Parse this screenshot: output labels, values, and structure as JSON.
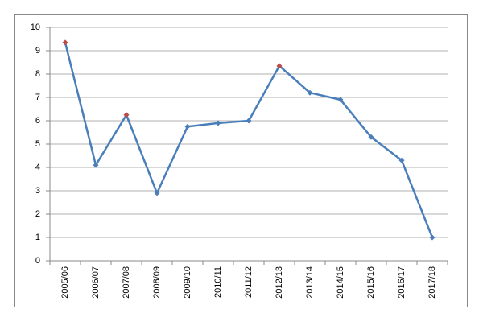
{
  "chart_data": {
    "type": "line",
    "categories": [
      "2005/06",
      "2006/07",
      "2007/08",
      "2008/09",
      "2009/10",
      "2010/11",
      "2011/12",
      "2012/13",
      "2013/14",
      "2014/15",
      "2015/16",
      "2016/17",
      "2017/18"
    ],
    "series": [
      {
        "color": "#4a7ebb",
        "values": [
          9.35,
          4.1,
          6.25,
          2.9,
          5.75,
          5.9,
          6.0,
          8.35,
          7.2,
          6.9,
          5.3,
          4.3,
          1.0
        ],
        "marker_colors": [
          "#be4b48",
          "#4a7ebb",
          "#be4b48",
          "#4a7ebb",
          "#4a7ebb",
          "#4a7ebb",
          "#4a7ebb",
          "#be4b48",
          "#4a7ebb",
          "#4a7ebb",
          "#4a7ebb",
          "#4a7ebb",
          "#4a7ebb"
        ]
      }
    ],
    "ylim": [
      0,
      10
    ],
    "yticks": [
      0,
      1,
      2,
      3,
      4,
      5,
      6,
      7,
      8,
      9,
      10
    ],
    "grid": true
  }
}
